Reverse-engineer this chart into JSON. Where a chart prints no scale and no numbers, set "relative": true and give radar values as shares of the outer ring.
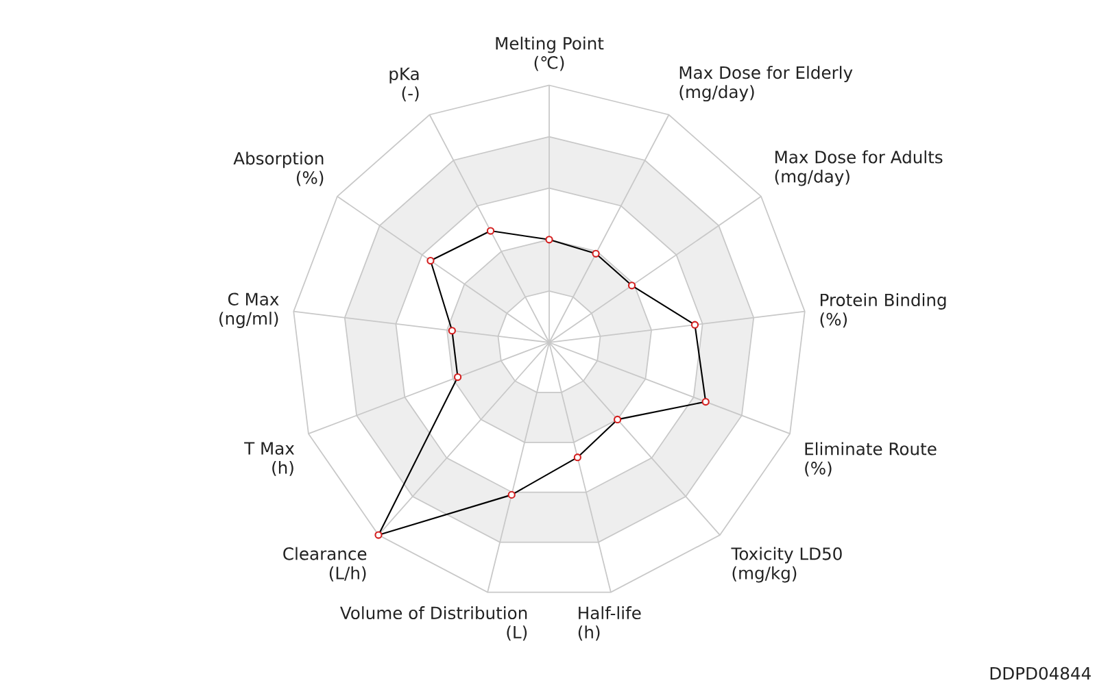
{
  "chart_data": {
    "type": "radar",
    "relative": true,
    "marker": "circle",
    "color": "#000000",
    "categories": [
      "Melting Point\n(℃)",
      "Max Dose for Elderly\n(mg/day)",
      "Max Dose for Adults\n(mg/day)",
      "Protein Binding\n(%)",
      "Eliminate Route\n(%)",
      "Toxicity LD50\n(mg/kg)",
      "Half-life\n(h)",
      "Volume of Distribution\n(L)",
      "Clearance\n(L/h)",
      "T Max\n(h)",
      "C Max\n(ng/ml)",
      "Absorption\n(%)",
      "pKa\n(-)"
    ],
    "values": [
      0.4,
      0.39,
      0.39,
      0.57,
      0.65,
      0.4,
      0.46,
      0.61,
      1.0,
      0.38,
      0.38,
      0.56,
      0.49
    ],
    "annotations": [
      "DDPD04844"
    ]
  }
}
